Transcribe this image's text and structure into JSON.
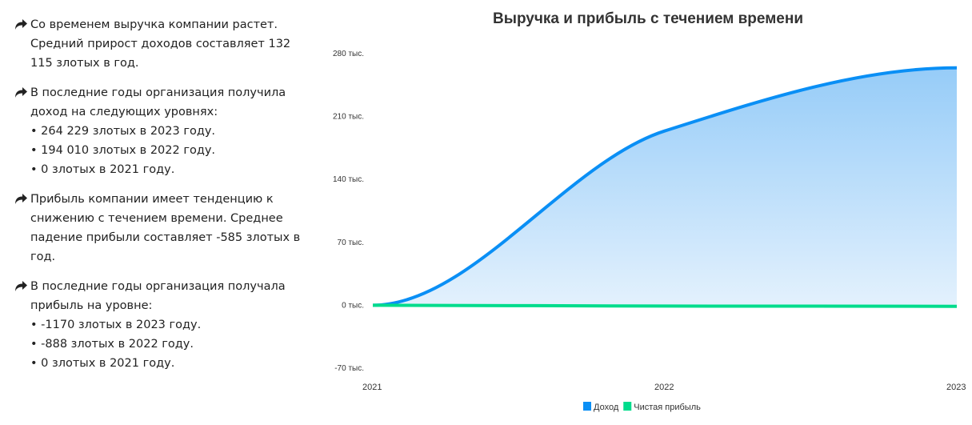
{
  "notes": [
    {
      "icon": "share-arrow-icon",
      "lines": [
        "Со временем выручка компании растет.",
        "Средний прирост доходов составляет 132",
        "115 злотых в год."
      ]
    },
    {
      "icon": "share-arrow-icon",
      "lines": [
        "В последние годы организация получила",
        "доход на следующих уровнях:",
        "• 264 229 злотых в 2023 году.",
        "• 194 010 злотых в 2022 году.",
        "• 0 злотых в 2021 году."
      ]
    },
    {
      "icon": "share-arrow-icon",
      "lines": [
        "Прибыль компании имеет тенденцию к",
        "снижению с течением времени. Среднее",
        "падение прибыли составляет -585 злотых в",
        "год."
      ]
    },
    {
      "icon": "share-arrow-icon",
      "lines": [
        "В последние годы организация получала",
        "прибыль на уровне:",
        "• -1170 злотых в 2023 году.",
        "• -888 злотых в 2022 году.",
        "• 0 злотых в 2021 году."
      ]
    }
  ],
  "chart_data": {
    "type": "area",
    "title": "Выручка и прибыль с течением времени",
    "categories": [
      "2021",
      "2022",
      "2023"
    ],
    "ylim": [
      -70000,
      280000
    ],
    "yticks": [
      -70000,
      0,
      70000,
      140000,
      210000,
      280000
    ],
    "ytick_labels": [
      "-70 тыс.",
      "0 тыс.",
      "70 тыс.",
      "140 тыс.",
      "210 тыс.",
      "280 тыс."
    ],
    "grid": false,
    "legend": "bottom",
    "series": [
      {
        "name": "Доход",
        "values": [
          0,
          194010,
          264229
        ],
        "color": "#0a8ff5",
        "fill": true
      },
      {
        "name": "Чистая прибыль",
        "values": [
          0,
          -888,
          -1170
        ],
        "color": "#00dc8c",
        "fill": false
      }
    ]
  }
}
